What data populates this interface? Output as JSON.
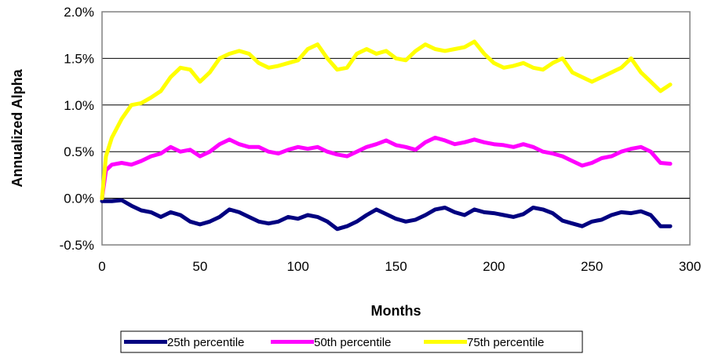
{
  "chart_data": {
    "type": "line",
    "xlabel": "Months",
    "ylabel": "Annualized Alpha",
    "xlim": [
      0,
      300
    ],
    "ylim": [
      -0.5,
      2.0
    ],
    "x_ticks": [
      0,
      50,
      100,
      150,
      200,
      250,
      300
    ],
    "x_tick_labels": [
      "0",
      "50",
      "100",
      "150",
      "200",
      "250",
      "300"
    ],
    "y_ticks": [
      -0.5,
      0.0,
      0.5,
      1.0,
      1.5,
      2.0
    ],
    "y_tick_labels": [
      "-0.5%",
      "0.0%",
      "0.5%",
      "1.0%",
      "1.5%",
      "2.0%"
    ],
    "grid": "horizontal",
    "legend_position": "bottom",
    "series": [
      {
        "name": "25th percentile",
        "color": "#000080",
        "x": [
          0,
          5,
          10,
          15,
          20,
          25,
          30,
          35,
          40,
          45,
          50,
          55,
          60,
          65,
          70,
          75,
          80,
          85,
          90,
          95,
          100,
          105,
          110,
          115,
          120,
          125,
          130,
          135,
          140,
          145,
          150,
          155,
          160,
          165,
          170,
          175,
          180,
          185,
          190,
          195,
          200,
          205,
          210,
          215,
          220,
          225,
          230,
          235,
          240,
          245,
          250,
          255,
          260,
          265,
          270,
          275,
          280,
          285,
          290
        ],
        "values": [
          -0.03,
          -0.03,
          -0.02,
          -0.08,
          -0.13,
          -0.15,
          -0.2,
          -0.15,
          -0.18,
          -0.25,
          -0.28,
          -0.25,
          -0.2,
          -0.12,
          -0.15,
          -0.2,
          -0.25,
          -0.27,
          -0.25,
          -0.2,
          -0.22,
          -0.18,
          -0.2,
          -0.25,
          -0.33,
          -0.3,
          -0.25,
          -0.18,
          -0.12,
          -0.17,
          -0.22,
          -0.25,
          -0.23,
          -0.18,
          -0.12,
          -0.1,
          -0.15,
          -0.18,
          -0.12,
          -0.15,
          -0.16,
          -0.18,
          -0.2,
          -0.17,
          -0.1,
          -0.12,
          -0.16,
          -0.24,
          -0.27,
          -0.3,
          -0.25,
          -0.23,
          -0.18,
          -0.15,
          -0.16,
          -0.14,
          -0.18,
          -0.3,
          -0.3
        ]
      },
      {
        "name": "50th percentile",
        "color": "#FF00FF",
        "x": [
          0,
          2,
          5,
          10,
          15,
          20,
          25,
          30,
          35,
          40,
          45,
          50,
          55,
          60,
          65,
          70,
          75,
          80,
          85,
          90,
          95,
          100,
          105,
          110,
          115,
          120,
          125,
          130,
          135,
          140,
          145,
          150,
          155,
          160,
          165,
          170,
          175,
          180,
          185,
          190,
          195,
          200,
          205,
          210,
          215,
          220,
          225,
          230,
          235,
          240,
          245,
          250,
          255,
          260,
          265,
          270,
          275,
          280,
          285,
          290
        ],
        "values": [
          0.0,
          0.3,
          0.36,
          0.38,
          0.36,
          0.4,
          0.45,
          0.48,
          0.55,
          0.5,
          0.52,
          0.45,
          0.5,
          0.58,
          0.63,
          0.58,
          0.55,
          0.55,
          0.5,
          0.48,
          0.52,
          0.55,
          0.53,
          0.55,
          0.5,
          0.47,
          0.45,
          0.5,
          0.55,
          0.58,
          0.62,
          0.57,
          0.55,
          0.52,
          0.6,
          0.65,
          0.62,
          0.58,
          0.6,
          0.63,
          0.6,
          0.58,
          0.57,
          0.55,
          0.58,
          0.55,
          0.5,
          0.48,
          0.45,
          0.4,
          0.35,
          0.38,
          0.43,
          0.45,
          0.5,
          0.53,
          0.55,
          0.5,
          0.38,
          0.37
        ]
      },
      {
        "name": "75th percentile",
        "color": "#FFFF00",
        "x": [
          0,
          2,
          5,
          10,
          15,
          20,
          25,
          30,
          35,
          40,
          45,
          50,
          55,
          60,
          65,
          70,
          75,
          80,
          85,
          90,
          95,
          100,
          105,
          110,
          115,
          120,
          125,
          130,
          135,
          140,
          145,
          150,
          155,
          160,
          165,
          170,
          175,
          180,
          185,
          190,
          195,
          200,
          205,
          210,
          215,
          220,
          225,
          230,
          235,
          240,
          245,
          250,
          255,
          260,
          265,
          270,
          275,
          280,
          285,
          290
        ],
        "values": [
          0.0,
          0.45,
          0.65,
          0.85,
          1.0,
          1.02,
          1.08,
          1.15,
          1.3,
          1.4,
          1.38,
          1.25,
          1.35,
          1.5,
          1.55,
          1.58,
          1.55,
          1.45,
          1.4,
          1.42,
          1.45,
          1.48,
          1.6,
          1.65,
          1.5,
          1.38,
          1.4,
          1.55,
          1.6,
          1.55,
          1.58,
          1.5,
          1.48,
          1.58,
          1.65,
          1.6,
          1.58,
          1.6,
          1.62,
          1.68,
          1.55,
          1.45,
          1.4,
          1.42,
          1.45,
          1.4,
          1.38,
          1.45,
          1.5,
          1.35,
          1.3,
          1.25,
          1.3,
          1.35,
          1.4,
          1.5,
          1.35,
          1.25,
          1.15,
          1.22
        ]
      }
    ]
  }
}
